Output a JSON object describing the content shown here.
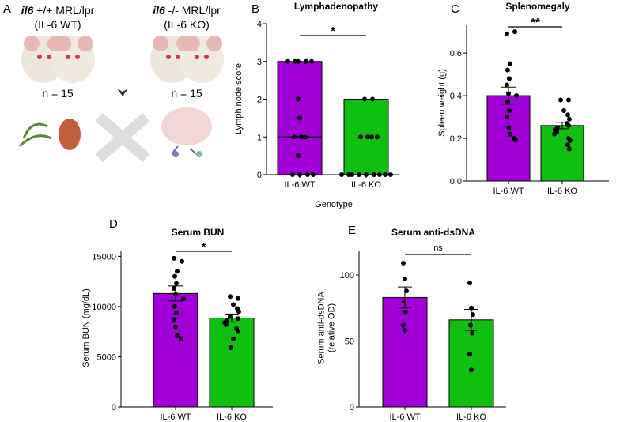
{
  "panel_a": {
    "label": "A",
    "groups": [
      {
        "gene": "il6",
        "strain": " +/+ MRL/lpr",
        "name": "(IL-6 WT)",
        "n": "n = 15"
      },
      {
        "gene": "il6",
        "strain": " -/- MRL/lpr",
        "name": "(IL-6 KO)",
        "n": "n = 15"
      }
    ]
  },
  "chart_data": [
    {
      "type": "range-bar",
      "panel": "B",
      "title": "Lymphadenopathy",
      "ylabel": [
        "Lymph node score"
      ],
      "xlabel": "Genotype",
      "categories": [
        "IL-6 WT",
        "IL-6 KO"
      ],
      "colors": [
        "#a100d6",
        "#10c010"
      ],
      "low": [
        0,
        0
      ],
      "high": [
        3,
        2
      ],
      "median": [
        1,
        0
      ],
      "points": [
        [
          3,
          3,
          3,
          3,
          3,
          2,
          1.5,
          1,
          1,
          1,
          0.5,
          0,
          0,
          0,
          0
        ],
        [
          2,
          2,
          1,
          1,
          1,
          1,
          0,
          0,
          0,
          0,
          0,
          0,
          0,
          0,
          0
        ]
      ],
      "ylim": [
        0,
        4
      ],
      "yticks": [
        0,
        1,
        2,
        3,
        4
      ],
      "significance": "*"
    },
    {
      "type": "bar",
      "panel": "C",
      "title": "Splenomegaly",
      "ylabel": [
        "Spleen weight (g)"
      ],
      "categories": [
        "IL-6 WT",
        "IL-6 KO"
      ],
      "colors": [
        "#a100d6",
        "#10c010"
      ],
      "values": [
        0.4,
        0.26
      ],
      "errors": [
        0.04,
        0.015
      ],
      "points": [
        [
          0.69,
          0.7,
          0.55,
          0.52,
          0.48,
          0.45,
          0.41,
          0.4,
          0.37,
          0.33,
          0.3,
          0.25,
          0.22,
          0.2,
          0.19
        ],
        [
          0.38,
          0.38,
          0.33,
          0.31,
          0.29,
          0.27,
          0.26,
          0.25,
          0.24,
          0.23,
          0.22,
          0.2,
          0.19,
          0.17,
          0.15
        ]
      ],
      "ylim": [
        0,
        0.73
      ],
      "yticks": [
        {
          "value": 0,
          "label": "0.0"
        },
        0.2,
        0.4,
        0.6
      ],
      "significance": "**"
    },
    {
      "type": "bar",
      "panel": "D",
      "title": "Serum BUN",
      "ylabel": [
        "Serum BUN (mg/dL)"
      ],
      "categories": [
        "IL-6 WT",
        "IL-6 KO"
      ],
      "colors": [
        "#a100d6",
        "#10c010"
      ],
      "values": [
        11300,
        8850
      ],
      "errors": [
        750,
        400
      ],
      "points": [
        [
          14800,
          14500,
          13500,
          13000,
          12300,
          11800,
          11200,
          10800,
          10000,
          9400,
          8700,
          8000,
          7100,
          6800
        ],
        [
          11000,
          10800,
          10200,
          9800,
          9500,
          9000,
          8800,
          8600,
          8400,
          8200,
          7800,
          7500,
          6800,
          5900
        ]
      ],
      "ylim": [
        0,
        15500
      ],
      "yticks": [
        0,
        5000,
        10000,
        15000
      ],
      "significance": "*"
    },
    {
      "type": "bar",
      "panel": "E",
      "title": "Serum anti-dsDNA",
      "ylabel": [
        "Serum anti-dsDNA",
        "(relative OD)"
      ],
      "categories": [
        "IL-6 WT",
        "IL-6 KO"
      ],
      "colors": [
        "#a100d6",
        "#10c010"
      ],
      "values": [
        83,
        66
      ],
      "errors": [
        8,
        8
      ],
      "points": [
        [
          109,
          97,
          88,
          80,
          72,
          62,
          58
        ],
        [
          94,
          75,
          70,
          62,
          56,
          40,
          28
        ]
      ],
      "ylim": [
        0,
        118
      ],
      "yticks": [
        0,
        50,
        100
      ],
      "significance": "ns"
    }
  ]
}
